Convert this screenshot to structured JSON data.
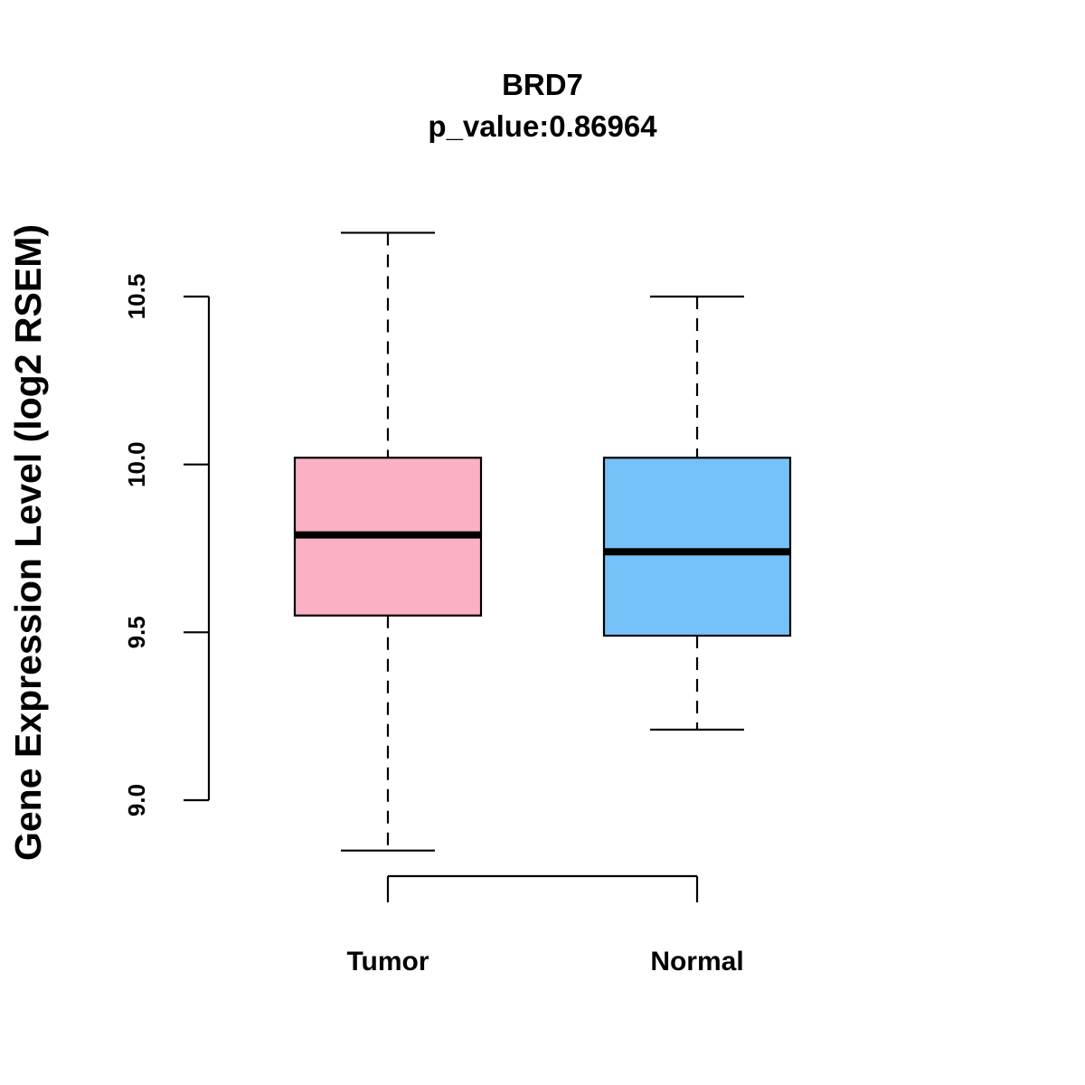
{
  "chart_data": {
    "type": "boxplot",
    "title": "BRD7",
    "subtitle": "p_value:0.86964",
    "xlabel": "",
    "ylabel": "Gene Expression Level (log2 RSEM)",
    "ylim": [
      8.8,
      10.75
    ],
    "yticks": [
      9.0,
      9.5,
      10.0,
      10.5
    ],
    "ytick_labels": [
      "9.0",
      "9.5",
      "10.0",
      "10.5"
    ],
    "grid": false,
    "categories": [
      "Tumor",
      "Normal"
    ],
    "series": [
      {
        "name": "Tumor",
        "color": "#FBB1C3",
        "whisker_low": 8.85,
        "q1": 9.55,
        "median": 9.79,
        "q3": 10.02,
        "whisker_high": 10.69
      },
      {
        "name": "Normal",
        "color": "#75C1F8",
        "whisker_low": 9.21,
        "q1": 9.49,
        "median": 9.74,
        "q3": 10.02,
        "whisker_high": 10.5
      }
    ]
  }
}
